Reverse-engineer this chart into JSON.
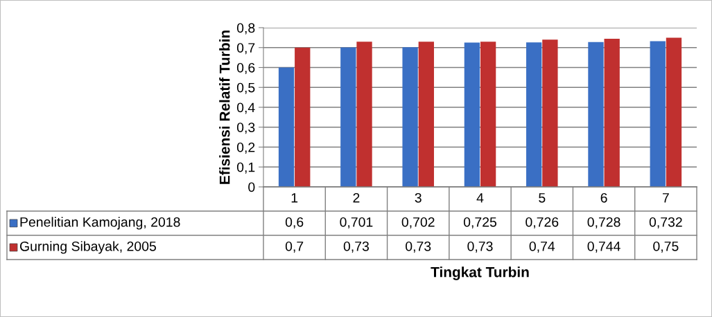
{
  "chart_data": {
    "type": "bar",
    "xlabel": "Tingkat Turbin",
    "ylabel": "Efisiensi Relatif Turbin",
    "categories": [
      "1",
      "2",
      "3",
      "4",
      "5",
      "6",
      "7"
    ],
    "series": [
      {
        "name": "Penelitian Kamojang, 2018",
        "color": "#3a6fc4",
        "values": [
          0.6,
          0.701,
          0.702,
          0.725,
          0.726,
          0.728,
          0.732
        ],
        "value_labels": [
          "0,6",
          "0,701",
          "0,702",
          "0,725",
          "0,726",
          "0,728",
          "0,732"
        ]
      },
      {
        "name": "Gurning Sibayak, 2005",
        "color": "#c0302f",
        "values": [
          0.7,
          0.73,
          0.73,
          0.73,
          0.74,
          0.744,
          0.75
        ],
        "value_labels": [
          "0,7",
          "0,73",
          "0,73",
          "0,73",
          "0,74",
          "0,744",
          "0,75"
        ]
      }
    ],
    "ylim": [
      0,
      0.8
    ],
    "yticks": [
      {
        "value": 0,
        "label": "0"
      },
      {
        "value": 0.1,
        "label": "0,1"
      },
      {
        "value": 0.2,
        "label": "0,2"
      },
      {
        "value": 0.3,
        "label": "0,3"
      },
      {
        "value": 0.4,
        "label": "0,4"
      },
      {
        "value": 0.5,
        "label": "0,5"
      },
      {
        "value": 0.6,
        "label": "0,6"
      },
      {
        "value": 0.7,
        "label": "0,7"
      },
      {
        "value": 0.8,
        "label": "0,8"
      }
    ],
    "grid": "y",
    "legend": "bottom"
  }
}
